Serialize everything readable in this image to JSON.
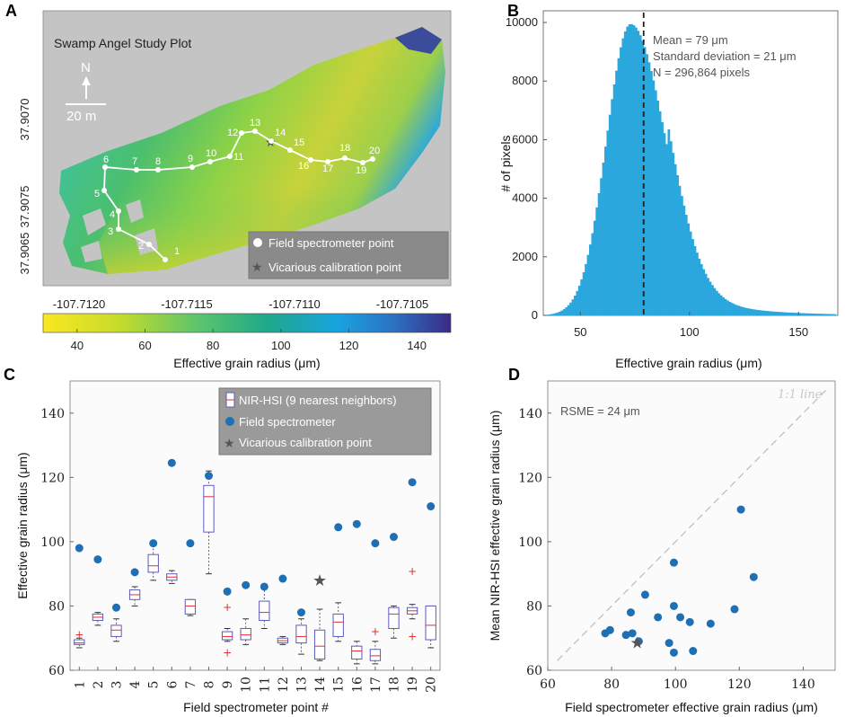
{
  "panels": {
    "a": "A",
    "b": "B",
    "c": "C",
    "d": "D"
  },
  "colors": {
    "hist": "#2aa7dc",
    "point": "#1f6fb5",
    "star": "#555555",
    "box": "#5a5abf",
    "median": "#e03030",
    "outlier": "#e03030"
  },
  "chart_data": [
    {
      "type": "map",
      "title": "Swamp Angel Study Plot",
      "north_label": "N",
      "scale_label": "20 m",
      "y_ticks": [
        "37.9065",
        "37.9070",
        "37.9075"
      ],
      "x_ticks": [
        "-107.7120",
        "-107.7115",
        "-107.7110",
        "-107.7105"
      ],
      "point_labels": [
        "1",
        "2",
        "3",
        "4",
        "5",
        "6",
        "7",
        "8",
        "9",
        "10",
        "11",
        "12",
        "13",
        "14",
        "15",
        "16",
        "17",
        "18",
        "19",
        "20"
      ],
      "legend": [
        "Field spectrometer point",
        "Vicarious calibration point"
      ],
      "colorbar": {
        "label": "Effective grain radius (μm)",
        "ticks": [
          40,
          60,
          80,
          100,
          120,
          140
        ],
        "range": [
          30,
          150
        ]
      }
    },
    {
      "type": "histogram",
      "xlabel": "Effective grain radius (μm)",
      "ylabel": "# of pixels",
      "xlim": [
        33,
        168
      ],
      "ylim": [
        0,
        10400
      ],
      "x_ticks": [
        50,
        100,
        150
      ],
      "y_ticks": [
        0,
        2000,
        4000,
        6000,
        8000,
        10000
      ],
      "mean_line": 79,
      "annotations": [
        "Mean = 79 μm",
        "Standard deviation = 21 μm",
        "N = 296,864 pixels"
      ]
    },
    {
      "type": "box",
      "xlabel": "Field spectrometer point #",
      "ylabel": "Effective grain radius (μm)",
      "ylim": [
        60,
        150
      ],
      "y_ticks": [
        60,
        80,
        100,
        120,
        140
      ],
      "categories": [
        "1",
        "2",
        "3",
        "4",
        "5",
        "6",
        "7",
        "8",
        "9",
        "10",
        "11",
        "12",
        "13",
        "14",
        "15",
        "16",
        "17",
        "18",
        "19",
        "20"
      ],
      "boxes": [
        {
          "min": 67,
          "q1": 68,
          "med": 68.5,
          "q3": 69.5,
          "max": 70,
          "out": [
            71
          ]
        },
        {
          "min": 74,
          "q1": 75.5,
          "med": 76.5,
          "q3": 77.5,
          "max": 78,
          "out": []
        },
        {
          "min": 69,
          "q1": 70.5,
          "med": 72.5,
          "q3": 74,
          "max": 76,
          "out": []
        },
        {
          "min": 80,
          "q1": 82,
          "med": 83.5,
          "q3": 85,
          "max": 86,
          "out": []
        },
        {
          "min": 88,
          "q1": 90.5,
          "med": 92.5,
          "q3": 96,
          "max": 99,
          "out": []
        },
        {
          "min": 87,
          "q1": 88,
          "med": 89,
          "q3": 90,
          "max": 91,
          "out": []
        },
        {
          "min": 77,
          "q1": 77.5,
          "med": 80,
          "q3": 82,
          "max": 82,
          "out": []
        },
        {
          "min": 90,
          "q1": 103,
          "med": 114,
          "q3": 117.5,
          "max": 122,
          "out": []
        },
        {
          "min": 69,
          "q1": 69.5,
          "med": 70.5,
          "q3": 72,
          "max": 73,
          "out": [
            79.5,
            65.5
          ]
        },
        {
          "min": 68,
          "q1": 69.5,
          "med": 71,
          "q3": 73,
          "max": 76,
          "out": []
        },
        {
          "min": 73,
          "q1": 75.5,
          "med": 78,
          "q3": 81.5,
          "max": 86,
          "out": []
        },
        {
          "min": 68,
          "q1": 68.5,
          "med": 69.2,
          "q3": 70,
          "max": 70.5,
          "out": []
        },
        {
          "min": 65,
          "q1": 68.5,
          "med": 70.5,
          "q3": 74,
          "max": 76,
          "out": []
        },
        {
          "min": 63,
          "q1": 63.5,
          "med": 67.5,
          "q3": 72.5,
          "max": 79,
          "out": []
        },
        {
          "min": 69,
          "q1": 70.5,
          "med": 75,
          "q3": 77.5,
          "max": 81,
          "out": []
        },
        {
          "min": 62,
          "q1": 63.5,
          "med": 66,
          "q3": 67.5,
          "max": 69,
          "out": []
        },
        {
          "min": 62,
          "q1": 63,
          "med": 64.5,
          "q3": 66.5,
          "max": 69,
          "out": [
            72
          ]
        },
        {
          "min": 70,
          "q1": 73,
          "med": 77.5,
          "q3": 79.5,
          "max": 80,
          "out": []
        },
        {
          "min": 76,
          "q1": 77.5,
          "med": 78.5,
          "q3": 79.5,
          "max": 80.5,
          "out": [
            90.8,
            70.5
          ]
        },
        {
          "min": 67,
          "q1": 69.5,
          "med": 74,
          "q3": 80,
          "max": 80,
          "out": []
        }
      ],
      "field_spectrometer": [
        98,
        94.5,
        79.5,
        90.5,
        99.5,
        124.5,
        99.5,
        120.5,
        84.5,
        86.5,
        86,
        88.5,
        78,
        null,
        104.5,
        105.5,
        99.5,
        101.5,
        118.5,
        111
      ],
      "vicarious_point": {
        "category": "14",
        "value": 88
      },
      "legend": [
        "NIR-HSI (9 nearest neighbors)",
        "Field spectrometer",
        "Vicarious calibration point"
      ]
    },
    {
      "type": "scatter",
      "xlabel": "Field spectrometer effective grain radius (μm)",
      "ylabel": "Mean NIR-HSI effective grain radius (μm)",
      "xlim": [
        60,
        150
      ],
      "ylim": [
        60,
        150
      ],
      "x_ticks": [
        60,
        80,
        100,
        120,
        140
      ],
      "y_ticks": [
        60,
        80,
        100,
        120,
        140
      ],
      "annotation": "RSME = 24 μm",
      "line_label": "1:1 line",
      "points": [
        {
          "x": 78,
          "y": 71.5
        },
        {
          "x": 79.5,
          "y": 72.5
        },
        {
          "x": 84.5,
          "y": 71
        },
        {
          "x": 86,
          "y": 78
        },
        {
          "x": 86.5,
          "y": 71.5
        },
        {
          "x": 88.5,
          "y": 69
        },
        {
          "x": 90.5,
          "y": 83.5
        },
        {
          "x": 94.5,
          "y": 76.5
        },
        {
          "x": 98,
          "y": 68.5
        },
        {
          "x": 99.5,
          "y": 93.5
        },
        {
          "x": 99.5,
          "y": 80
        },
        {
          "x": 99.5,
          "y": 65.5
        },
        {
          "x": 101.5,
          "y": 76.5
        },
        {
          "x": 104.5,
          "y": 75
        },
        {
          "x": 105.5,
          "y": 66
        },
        {
          "x": 111,
          "y": 74.5
        },
        {
          "x": 118.5,
          "y": 79
        },
        {
          "x": 120.5,
          "y": 110
        },
        {
          "x": 124.5,
          "y": 89
        }
      ],
      "vicarious_point": {
        "x": 88,
        "y": 68.5
      }
    }
  ]
}
